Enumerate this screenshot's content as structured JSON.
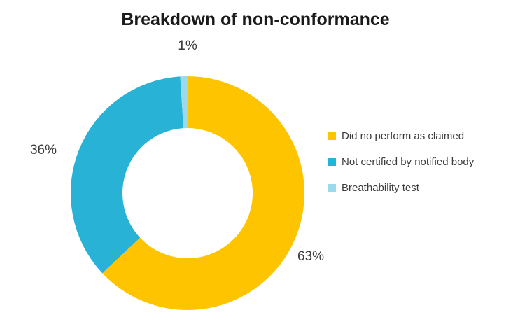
{
  "chart_data": {
    "type": "pie",
    "subtype": "donut",
    "title": "Breakdown of non-conformance",
    "legend_position": "right",
    "start_angle_deg": 0,
    "direction": "clockwise",
    "slices": [
      {
        "label": "Did no perform as claimed",
        "value": 63,
        "display": "63%",
        "color": "#FFC400"
      },
      {
        "label": "Not certified by notified body",
        "value": 36,
        "display": "36%",
        "color": "#28B2D6"
      },
      {
        "label": "Breathability test",
        "value": 1,
        "display": "1%",
        "color": "#9ADAEB"
      }
    ],
    "label_color": "#3b3b3b",
    "title_color": "#1a1a1a"
  }
}
